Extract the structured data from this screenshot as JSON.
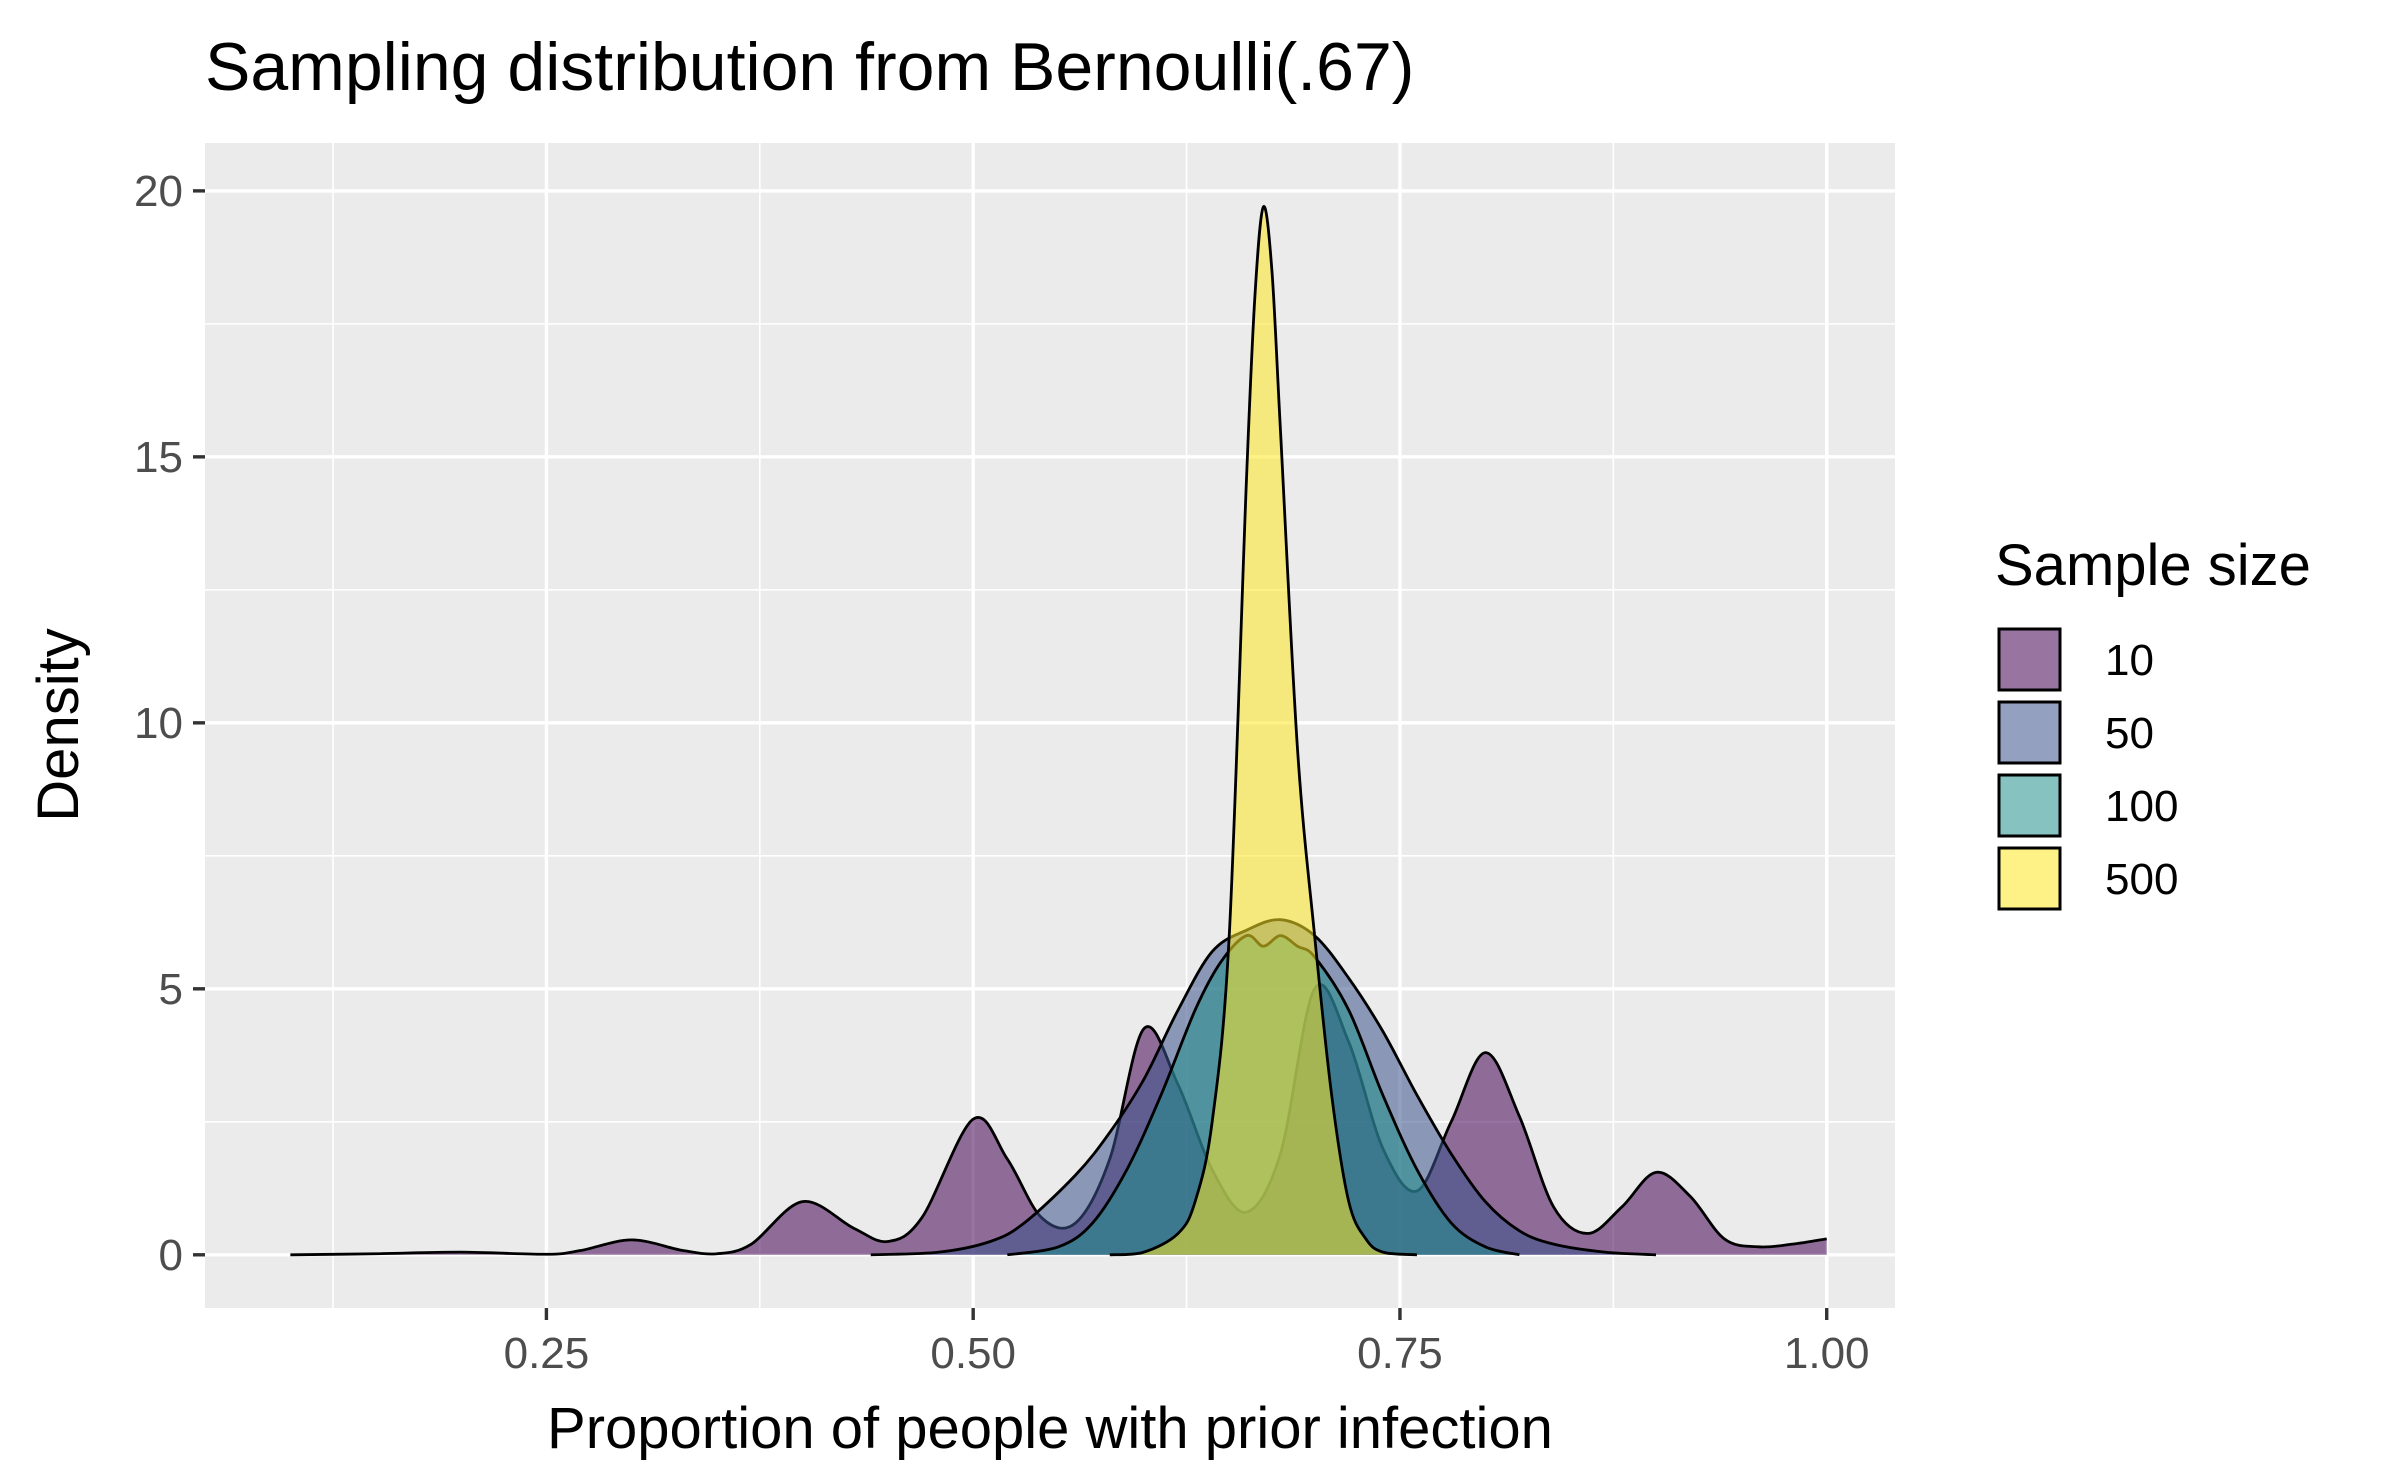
{
  "chart_data": {
    "type": "area",
    "title": "Sampling distribution from Bernoulli(.67)",
    "xlabel": "Proportion of people with prior infection",
    "ylabel": "Density",
    "xlim": [
      0.05,
      1.04
    ],
    "ylim": [
      -1,
      20.9
    ],
    "x_ticks": [
      0.25,
      0.5,
      0.75,
      1.0
    ],
    "x_tick_labels": [
      "0.25",
      "0.50",
      "0.75",
      "1.00"
    ],
    "y_ticks": [
      0,
      5,
      10,
      15,
      20
    ],
    "y_tick_labels": [
      "0",
      "5",
      "10",
      "15",
      "20"
    ],
    "grid": true,
    "legend": {
      "title": "Sample size",
      "position": "right"
    },
    "series": [
      {
        "name": "10",
        "color": "#440154",
        "points": [
          [
            0.1,
            0
          ],
          [
            0.15,
            0.02
          ],
          [
            0.2,
            0.05
          ],
          [
            0.25,
            0.01
          ],
          [
            0.27,
            0.08
          ],
          [
            0.3,
            0.28
          ],
          [
            0.33,
            0.08
          ],
          [
            0.35,
            0.02
          ],
          [
            0.37,
            0.2
          ],
          [
            0.4,
            1.0
          ],
          [
            0.43,
            0.5
          ],
          [
            0.45,
            0.25
          ],
          [
            0.47,
            0.7
          ],
          [
            0.5,
            2.55
          ],
          [
            0.52,
            1.8
          ],
          [
            0.54,
            0.7
          ],
          [
            0.56,
            0.6
          ],
          [
            0.58,
            1.8
          ],
          [
            0.6,
            4.25
          ],
          [
            0.62,
            3.2
          ],
          [
            0.64,
            1.6
          ],
          [
            0.66,
            0.8
          ],
          [
            0.68,
            1.9
          ],
          [
            0.7,
            5.0
          ],
          [
            0.72,
            4.0
          ],
          [
            0.74,
            2.0
          ],
          [
            0.76,
            1.2
          ],
          [
            0.78,
            2.5
          ],
          [
            0.8,
            3.8
          ],
          [
            0.82,
            2.6
          ],
          [
            0.84,
            0.9
          ],
          [
            0.86,
            0.4
          ],
          [
            0.88,
            0.9
          ],
          [
            0.9,
            1.55
          ],
          [
            0.92,
            1.1
          ],
          [
            0.94,
            0.3
          ],
          [
            0.96,
            0.15
          ],
          [
            0.98,
            0.2
          ],
          [
            1.0,
            0.3
          ]
        ]
      },
      {
        "name": "50",
        "color": "#3B528B",
        "points": [
          [
            0.44,
            0
          ],
          [
            0.48,
            0.05
          ],
          [
            0.51,
            0.25
          ],
          [
            0.53,
            0.6
          ],
          [
            0.56,
            1.5
          ],
          [
            0.58,
            2.3
          ],
          [
            0.6,
            3.3
          ],
          [
            0.62,
            4.6
          ],
          [
            0.64,
            5.7
          ],
          [
            0.66,
            6.1
          ],
          [
            0.68,
            6.3
          ],
          [
            0.7,
            6.0
          ],
          [
            0.72,
            5.2
          ],
          [
            0.74,
            4.2
          ],
          [
            0.76,
            3.0
          ],
          [
            0.78,
            1.9
          ],
          [
            0.8,
            1.0
          ],
          [
            0.82,
            0.45
          ],
          [
            0.84,
            0.2
          ],
          [
            0.87,
            0.05
          ],
          [
            0.9,
            0
          ]
        ]
      },
      {
        "name": "100",
        "color": "#21908C",
        "points": [
          [
            0.52,
            0
          ],
          [
            0.55,
            0.15
          ],
          [
            0.57,
            0.6
          ],
          [
            0.59,
            1.6
          ],
          [
            0.61,
            3.0
          ],
          [
            0.63,
            4.6
          ],
          [
            0.645,
            5.5
          ],
          [
            0.66,
            6.0
          ],
          [
            0.67,
            5.8
          ],
          [
            0.68,
            6.0
          ],
          [
            0.69,
            5.8
          ],
          [
            0.7,
            5.6
          ],
          [
            0.72,
            4.6
          ],
          [
            0.74,
            3.0
          ],
          [
            0.76,
            1.6
          ],
          [
            0.78,
            0.6
          ],
          [
            0.8,
            0.15
          ],
          [
            0.82,
            0
          ]
        ]
      },
      {
        "name": "500",
        "color": "#FDE725",
        "points": [
          [
            0.58,
            0
          ],
          [
            0.6,
            0.05
          ],
          [
            0.62,
            0.4
          ],
          [
            0.63,
            1.0
          ],
          [
            0.64,
            2.5
          ],
          [
            0.65,
            6.0
          ],
          [
            0.66,
            14.5
          ],
          [
            0.665,
            18.0
          ],
          [
            0.67,
            19.7
          ],
          [
            0.675,
            18.5
          ],
          [
            0.68,
            15.5
          ],
          [
            0.69,
            9.5
          ],
          [
            0.7,
            6.0
          ],
          [
            0.71,
            3.0
          ],
          [
            0.72,
            1.0
          ],
          [
            0.73,
            0.3
          ],
          [
            0.74,
            0.05
          ],
          [
            0.76,
            0
          ]
        ]
      }
    ]
  }
}
